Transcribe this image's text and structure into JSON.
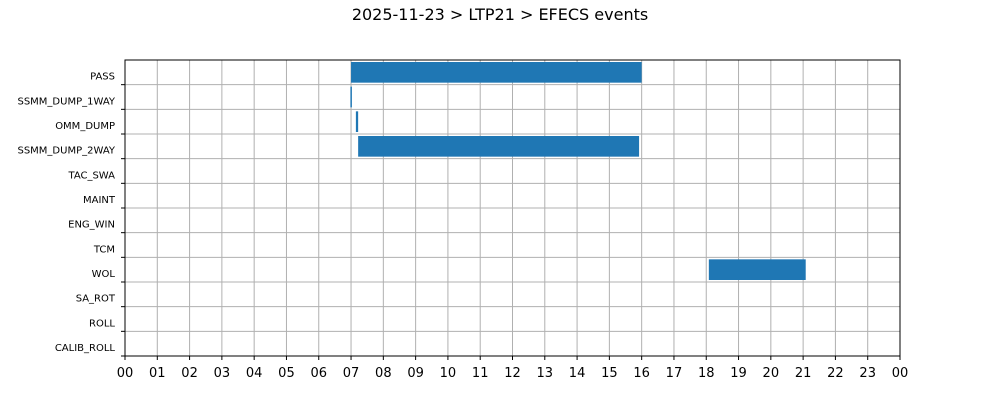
{
  "chart_data": {
    "type": "bar",
    "orientation": "horizontal-timeline",
    "title": "2025-11-23 > LTP21 > EFECS events",
    "categories": [
      "PASS",
      "SSMM_DUMP_1WAY",
      "OMM_DUMP",
      "SSMM_DUMP_2WAY",
      "TAC_SWA",
      "MAINT",
      "ENG_WIN",
      "TCM",
      "WOL",
      "SA_ROT",
      "ROLL",
      "CALIB_ROLL"
    ],
    "x_ticks": [
      "00",
      "01",
      "02",
      "03",
      "04",
      "05",
      "06",
      "07",
      "08",
      "09",
      "10",
      "11",
      "12",
      "13",
      "14",
      "15",
      "16",
      "17",
      "18",
      "19",
      "20",
      "21",
      "22",
      "23",
      "00"
    ],
    "xlim_hours": [
      0,
      24
    ],
    "grid": true,
    "bar_color": "#1f77b4",
    "series": [
      {
        "events": [
          {
            "category": "PASS",
            "start_hour": 7.0,
            "end_hour": 16.0
          },
          {
            "category": "SSMM_DUMP_1WAY",
            "start_hour": 6.98,
            "end_hour": 7.02
          },
          {
            "category": "OMM_DUMP",
            "start_hour": 7.15,
            "end_hour": 7.22
          },
          {
            "category": "SSMM_DUMP_2WAY",
            "start_hour": 7.22,
            "end_hour": 15.92
          },
          {
            "category": "WOL",
            "start_hour": 18.08,
            "end_hour": 21.08
          }
        ]
      }
    ]
  }
}
